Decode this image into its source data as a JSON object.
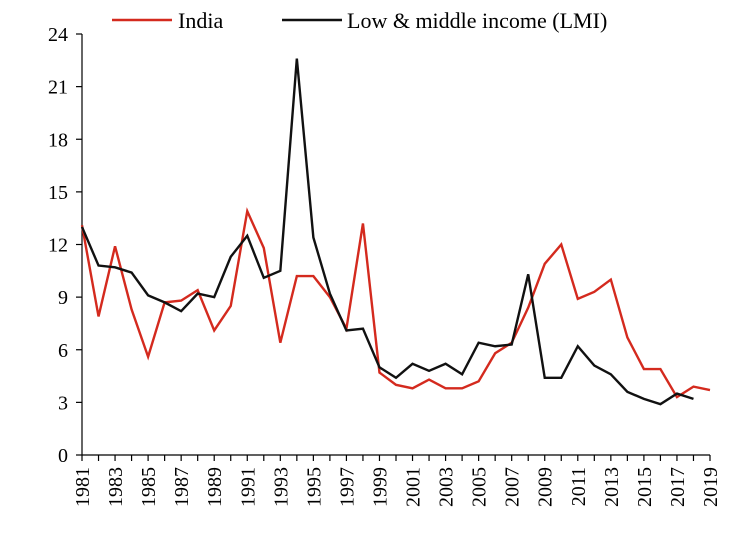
{
  "chart_data": {
    "type": "line",
    "title": "",
    "xlabel": "",
    "ylabel": "",
    "x": [
      1981,
      1982,
      1983,
      1984,
      1985,
      1986,
      1987,
      1988,
      1989,
      1990,
      1991,
      1992,
      1993,
      1994,
      1995,
      1996,
      1997,
      1998,
      1999,
      2000,
      2001,
      2002,
      2003,
      2004,
      2005,
      2006,
      2007,
      2008,
      2009,
      2010,
      2011,
      2012,
      2013,
      2014,
      2015,
      2016,
      2017,
      2018,
      2019
    ],
    "x_tick_labels": [
      "1981",
      "1983",
      "1985",
      "1987",
      "1989",
      "1991",
      "1993",
      "1995",
      "1997",
      "1999",
      "2001",
      "2003",
      "2005",
      "2007",
      "2009",
      "2011",
      "2013",
      "2015",
      "2017",
      "2019"
    ],
    "y_ticks": [
      0,
      3,
      6,
      9,
      12,
      15,
      18,
      21,
      24
    ],
    "ylim": [
      0,
      24
    ],
    "xlim": [
      1981,
      2019
    ],
    "grid": false,
    "legend_position": "top",
    "series": [
      {
        "name": "India",
        "color": "#d42a1e",
        "values": [
          13.1,
          7.9,
          11.9,
          8.3,
          5.6,
          8.7,
          8.8,
          9.4,
          7.1,
          8.5,
          13.9,
          11.8,
          6.4,
          10.2,
          10.2,
          9.0,
          7.2,
          13.2,
          4.7,
          4.0,
          3.8,
          4.3,
          3.8,
          3.8,
          4.2,
          5.8,
          6.4,
          8.4,
          10.9,
          12.0,
          8.9,
          9.3,
          10.0,
          6.7,
          4.9,
          4.9,
          3.3,
          3.9,
          3.7
        ]
      },
      {
        "name": "Low & middle income (LMI)",
        "color": "#111111",
        "values": [
          13.0,
          10.8,
          10.7,
          10.4,
          9.1,
          8.7,
          8.2,
          9.2,
          9.0,
          11.3,
          12.5,
          10.1,
          10.5,
          22.6,
          12.4,
          9.2,
          7.1,
          7.2,
          5.0,
          4.4,
          5.2,
          4.8,
          5.2,
          4.6,
          6.4,
          6.2,
          6.3,
          10.3,
          4.4,
          4.4,
          6.2,
          5.1,
          4.6,
          3.6,
          3.2,
          2.9,
          3.5,
          3.2,
          null
        ]
      }
    ]
  }
}
